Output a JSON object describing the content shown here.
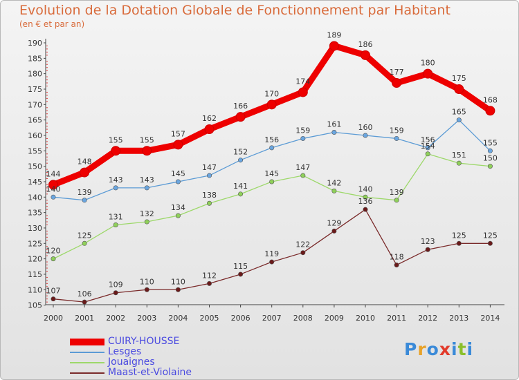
{
  "header": {
    "title": "Evolution de la Dotation Globale de Fonctionnement par Habitant",
    "subtitle": "(en € et par an)"
  },
  "logo": {
    "text": "Proxiti",
    "letters": [
      {
        "ch": "P",
        "color": "#3a8ad8"
      },
      {
        "ch": "r",
        "color": "#e8a228"
      },
      {
        "ch": "o",
        "color": "#3a8ad8"
      },
      {
        "ch": "x",
        "color": "#e23a2a"
      },
      {
        "ch": "i",
        "color": "#3a8ad8"
      },
      {
        "ch": "t",
        "color": "#8abf2a"
      },
      {
        "ch": "i",
        "color": "#3a8ad8"
      }
    ]
  },
  "chart_data": {
    "type": "line",
    "title": "Evolution de la Dotation Globale de Fonctionnement par Habitant",
    "subtitle": "(en € et par an)",
    "x": [
      "2000",
      "2001",
      "2002",
      "2003",
      "2004",
      "2005",
      "2006",
      "2007",
      "2008",
      "2009",
      "2010",
      "2011",
      "2012",
      "2013",
      "2014"
    ],
    "ylim": [
      104,
      192
    ],
    "yticks": [
      105,
      110,
      115,
      120,
      125,
      130,
      135,
      140,
      145,
      150,
      155,
      160,
      165,
      170,
      175,
      180,
      185,
      190
    ],
    "grid": false,
    "legend_position": "bottom-left",
    "series": [
      {
        "name": "CUIRY-HOUSSE",
        "color": "#ee0000",
        "marker_fill": "#ee0000",
        "emphasis": true,
        "values": [
          144,
          148,
          155,
          155,
          157,
          162,
          166,
          170,
          174,
          189,
          186,
          177,
          180,
          175,
          168
        ]
      },
      {
        "name": "Lesges",
        "color": "#5b9bd5",
        "marker_fill": "#6aa6e0",
        "emphasis": false,
        "values": [
          140,
          139,
          143,
          143,
          145,
          147,
          152,
          156,
          159,
          161,
          160,
          159,
          156,
          165,
          155
        ]
      },
      {
        "name": "Jouaignes",
        "color": "#9dd86a",
        "marker_fill": "#8fd05a",
        "emphasis": false,
        "values": [
          120,
          125,
          131,
          132,
          134,
          138,
          141,
          145,
          147,
          142,
          140,
          139,
          154,
          151,
          150
        ]
      },
      {
        "name": "Maast-et-Violaine",
        "color": "#7a2a2a",
        "marker_fill": "#6a1a1a",
        "emphasis": false,
        "values": [
          107,
          106,
          109,
          110,
          110,
          112,
          115,
          119,
          122,
          129,
          136,
          118,
          123,
          125,
          125
        ]
      }
    ]
  }
}
